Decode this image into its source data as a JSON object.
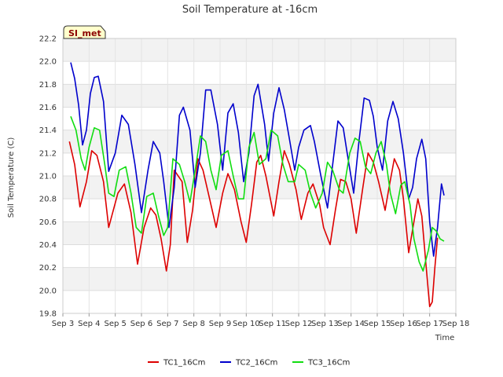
{
  "chart_data": {
    "type": "line",
    "title": "Soil Temperature at -16cm",
    "xlabel": "Time",
    "ylabel": "Soil Temperature (C)",
    "badge": "SI_met",
    "xlim": [
      3,
      18
    ],
    "ylim": [
      19.8,
      22.2
    ],
    "x_ticks": [
      {
        "value": 3,
        "label": "Sep 3"
      },
      {
        "value": 4,
        "label": "Sep 4"
      },
      {
        "value": 5,
        "label": "Sep 5"
      },
      {
        "value": 6,
        "label": "Sep 6"
      },
      {
        "value": 7,
        "label": "Sep 7"
      },
      {
        "value": 8,
        "label": "Sep 8"
      },
      {
        "value": 9,
        "label": "Sep 9"
      },
      {
        "value": 10,
        "label": "Sep 10"
      },
      {
        "value": 11,
        "label": "Sep 11"
      },
      {
        "value": 12,
        "label": "Sep 12"
      },
      {
        "value": 13,
        "label": "Sep 13"
      },
      {
        "value": 14,
        "label": "Sep 14"
      },
      {
        "value": 15,
        "label": "Sep 15"
      },
      {
        "value": 16,
        "label": "Sep 16"
      },
      {
        "value": 17,
        "label": "Sep 17"
      },
      {
        "value": 18,
        "label": "Sep 18"
      }
    ],
    "y_ticks": [
      {
        "value": 19.8,
        "label": "19.8"
      },
      {
        "value": 20.0,
        "label": "20.0"
      },
      {
        "value": 20.2,
        "label": "20.2"
      },
      {
        "value": 20.4,
        "label": "20.4"
      },
      {
        "value": 20.6,
        "label": "20.6"
      },
      {
        "value": 20.8,
        "label": "20.8"
      },
      {
        "value": 21.0,
        "label": "21.0"
      },
      {
        "value": 21.2,
        "label": "21.2"
      },
      {
        "value": 21.4,
        "label": "21.4"
      },
      {
        "value": 21.6,
        "label": "21.6"
      },
      {
        "value": 21.8,
        "label": "21.8"
      },
      {
        "value": 22.0,
        "label": "22.0"
      },
      {
        "value": 22.2,
        "label": "22.2"
      }
    ],
    "grid": true,
    "legend_position": "bottom-center",
    "series": [
      {
        "name": "TC1_16Cm",
        "color": "#dd0000",
        "x": [
          3.25,
          3.45,
          3.65,
          3.9,
          4.1,
          4.3,
          4.55,
          4.75,
          5.1,
          5.35,
          5.6,
          5.85,
          6.1,
          6.35,
          6.55,
          6.75,
          6.95,
          7.1,
          7.25,
          7.55,
          7.75,
          7.95,
          8.15,
          8.35,
          8.6,
          8.85,
          9.1,
          9.3,
          9.55,
          9.8,
          10.0,
          10.2,
          10.4,
          10.55,
          10.75,
          11.05,
          11.25,
          11.45,
          11.65,
          11.9,
          12.1,
          12.35,
          12.55,
          12.8,
          12.95,
          13.2,
          13.4,
          13.6,
          13.8,
          14.0,
          14.2,
          14.45,
          14.65,
          14.85,
          15.05,
          15.3,
          15.45,
          15.65,
          15.85,
          16.0,
          16.2,
          16.4,
          16.55,
          16.7,
          16.85,
          17.0,
          17.1,
          17.2,
          17.3
        ],
        "y": [
          21.3,
          21.1,
          20.73,
          20.95,
          21.22,
          21.18,
          20.95,
          20.55,
          20.85,
          20.93,
          20.68,
          20.23,
          20.55,
          20.72,
          20.66,
          20.45,
          20.17,
          20.4,
          21.05,
          20.95,
          20.42,
          20.7,
          21.15,
          21.05,
          20.8,
          20.55,
          20.85,
          21.02,
          20.88,
          20.6,
          20.42,
          20.75,
          21.12,
          21.18,
          21.0,
          20.65,
          20.95,
          21.22,
          21.1,
          20.88,
          20.62,
          20.85,
          20.93,
          20.75,
          20.55,
          20.4,
          20.7,
          20.97,
          20.95,
          20.8,
          20.5,
          20.9,
          21.2,
          21.12,
          20.95,
          20.7,
          20.9,
          21.15,
          21.05,
          20.8,
          20.33,
          20.6,
          20.8,
          20.65,
          20.25,
          19.86,
          19.9,
          20.2,
          20.46
        ]
      },
      {
        "name": "TC2_16Cm",
        "color": "#0000cc",
        "x": [
          3.3,
          3.45,
          3.6,
          3.75,
          3.9,
          4.05,
          4.2,
          4.35,
          4.55,
          4.75,
          5.0,
          5.25,
          5.5,
          5.75,
          6.0,
          6.25,
          6.45,
          6.7,
          6.85,
          7.05,
          7.25,
          7.45,
          7.6,
          7.85,
          8.05,
          8.25,
          8.45,
          8.65,
          8.9,
          9.1,
          9.3,
          9.5,
          9.7,
          9.9,
          10.1,
          10.3,
          10.45,
          10.7,
          10.85,
          11.05,
          11.25,
          11.45,
          11.65,
          11.85,
          12.0,
          12.2,
          12.45,
          12.6,
          12.85,
          13.1,
          13.3,
          13.5,
          13.7,
          13.85,
          14.1,
          14.3,
          14.5,
          14.7,
          14.85,
          15.0,
          15.2,
          15.4,
          15.6,
          15.8,
          16.0,
          16.2,
          16.35,
          16.5,
          16.7,
          16.85,
          17.0,
          17.15,
          17.3,
          17.45,
          17.55
        ],
        "y": [
          21.99,
          21.85,
          21.62,
          21.27,
          21.4,
          21.72,
          21.86,
          21.87,
          21.65,
          21.04,
          21.2,
          21.53,
          21.45,
          21.1,
          20.68,
          21.05,
          21.3,
          21.2,
          20.95,
          20.55,
          20.9,
          21.53,
          21.6,
          21.4,
          20.9,
          21.2,
          21.75,
          21.75,
          21.45,
          21.05,
          21.55,
          21.63,
          21.38,
          20.95,
          21.2,
          21.7,
          21.8,
          21.45,
          21.13,
          21.55,
          21.77,
          21.58,
          21.32,
          21.05,
          21.25,
          21.4,
          21.44,
          21.3,
          21.0,
          20.72,
          21.1,
          21.48,
          21.42,
          21.2,
          20.85,
          21.3,
          21.68,
          21.66,
          21.52,
          21.25,
          21.05,
          21.48,
          21.65,
          21.5,
          21.2,
          20.8,
          20.9,
          21.15,
          21.32,
          21.15,
          20.6,
          20.3,
          20.55,
          20.93,
          20.83
        ]
      },
      {
        "name": "TC3_16Cm",
        "color": "#11dd11",
        "x": [
          3.3,
          3.5,
          3.7,
          3.85,
          4.0,
          4.2,
          4.4,
          4.6,
          4.75,
          4.95,
          5.15,
          5.4,
          5.6,
          5.8,
          6.0,
          6.2,
          6.45,
          6.65,
          6.85,
          7.0,
          7.2,
          7.45,
          7.65,
          7.85,
          8.05,
          8.25,
          8.45,
          8.65,
          8.85,
          9.05,
          9.3,
          9.5,
          9.7,
          9.9,
          10.1,
          10.3,
          10.5,
          10.75,
          10.95,
          11.2,
          11.4,
          11.6,
          11.85,
          12.0,
          12.25,
          12.45,
          12.65,
          12.9,
          13.1,
          13.3,
          13.55,
          13.7,
          13.95,
          14.15,
          14.35,
          14.55,
          14.75,
          14.95,
          15.15,
          15.35,
          15.5,
          15.7,
          15.9,
          16.05,
          16.25,
          16.4,
          16.6,
          16.75,
          16.95,
          17.1,
          17.25,
          17.4,
          17.55
        ],
        "y": [
          21.52,
          21.4,
          21.15,
          21.05,
          21.25,
          21.42,
          21.4,
          21.1,
          20.85,
          20.82,
          21.05,
          21.08,
          20.85,
          20.55,
          20.5,
          20.82,
          20.85,
          20.65,
          20.48,
          20.55,
          21.15,
          21.1,
          20.95,
          20.77,
          21.05,
          21.35,
          21.3,
          21.05,
          20.88,
          21.18,
          21.22,
          21.0,
          20.8,
          20.8,
          21.25,
          21.38,
          21.1,
          21.15,
          21.4,
          21.35,
          21.1,
          20.95,
          20.95,
          21.1,
          21.05,
          20.85,
          20.72,
          20.85,
          21.12,
          21.05,
          20.88,
          20.85,
          21.2,
          21.33,
          21.3,
          21.08,
          21.02,
          21.2,
          21.3,
          21.1,
          20.85,
          20.67,
          20.92,
          20.95,
          20.75,
          20.45,
          20.25,
          20.17,
          20.35,
          20.55,
          20.52,
          20.45,
          20.43
        ]
      }
    ]
  }
}
